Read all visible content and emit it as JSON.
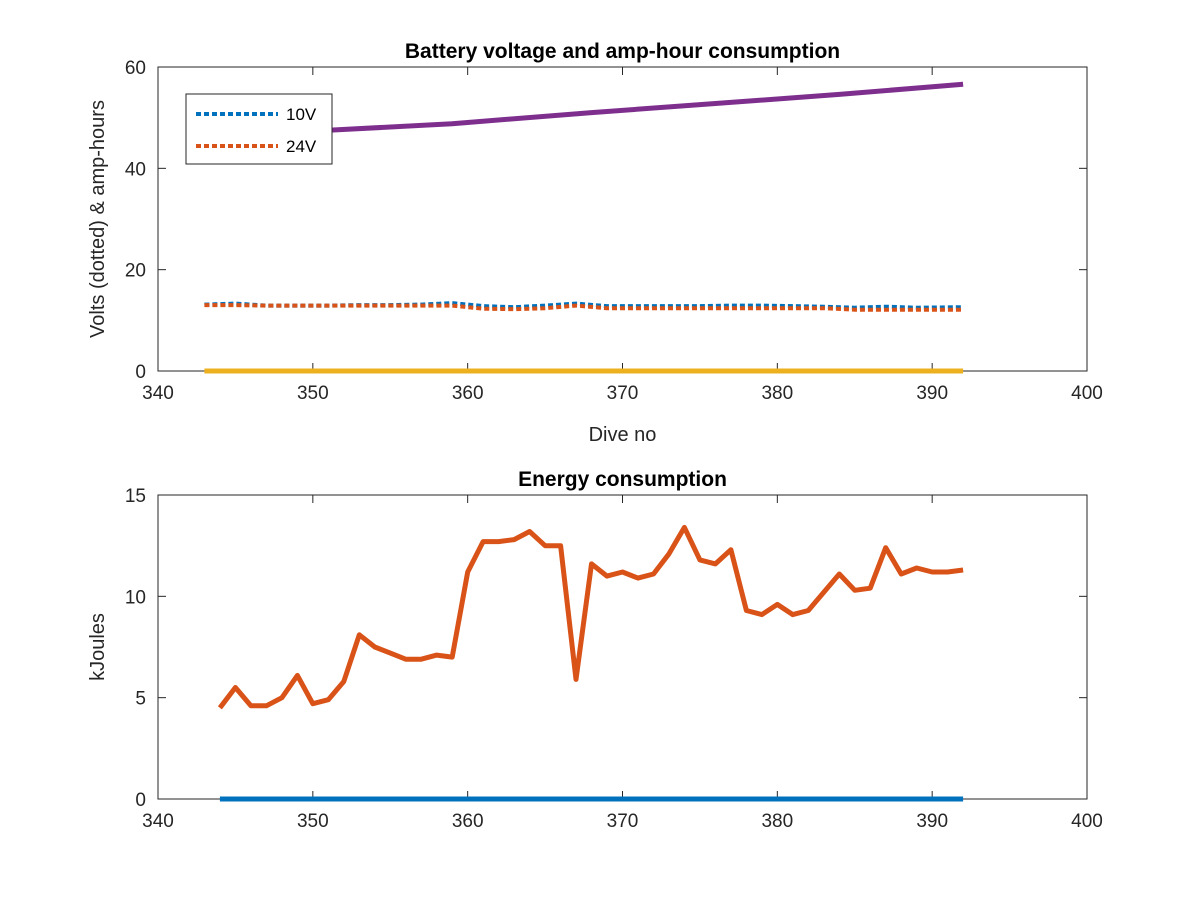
{
  "chart_data": [
    {
      "type": "line",
      "title": "Battery voltage and amp-hour consumption",
      "xlabel": "Dive no",
      "ylabel": "Volts (dotted) & amp-hours",
      "xlim": [
        340,
        400
      ],
      "ylim": [
        0,
        60
      ],
      "xticks": [
        340,
        350,
        360,
        370,
        380,
        390,
        400
      ],
      "yticks": [
        0,
        20,
        40,
        60
      ],
      "legend": {
        "placement": "top-left",
        "entries": [
          "10V",
          "24V"
        ]
      },
      "series": [
        {
          "name": "10V",
          "style": "dotted",
          "color": "#0072BD",
          "x": [
            343,
            345,
            347,
            349,
            351,
            353,
            355,
            357,
            359,
            361,
            363,
            365,
            367,
            369,
            371,
            373,
            375,
            377,
            379,
            381,
            383,
            385,
            387,
            389,
            392
          ],
          "y": [
            13.1,
            13.3,
            12.9,
            12.9,
            12.9,
            13.0,
            13.0,
            13.1,
            13.4,
            12.8,
            12.6,
            12.9,
            13.3,
            12.8,
            12.8,
            12.8,
            12.8,
            12.9,
            12.9,
            12.8,
            12.7,
            12.5,
            12.7,
            12.5,
            12.6
          ]
        },
        {
          "name": "24V",
          "style": "dotted",
          "color": "#D95319",
          "x": [
            343,
            345,
            347,
            349,
            351,
            353,
            355,
            357,
            359,
            361,
            363,
            365,
            367,
            369,
            371,
            373,
            375,
            377,
            379,
            381,
            383,
            385,
            387,
            389,
            392
          ],
          "y": [
            13.0,
            13.0,
            12.9,
            12.9,
            12.9,
            12.9,
            12.9,
            12.9,
            12.9,
            12.3,
            12.2,
            12.4,
            12.9,
            12.4,
            12.4,
            12.4,
            12.4,
            12.4,
            12.4,
            12.4,
            12.4,
            12.1,
            12.1,
            12.1,
            12.1
          ]
        },
        {
          "style": "solid",
          "color": "#7E2F8E",
          "x": [
            343,
            351,
            359,
            368,
            376,
            384,
            392
          ],
          "y": [
            47.0,
            47.5,
            48.8,
            51.0,
            52.8,
            54.6,
            56.6
          ]
        },
        {
          "style": "solid",
          "color": "#EDB120",
          "x": [
            343,
            392
          ],
          "y": [
            0,
            0
          ]
        }
      ]
    },
    {
      "type": "line",
      "title": "Energy consumption",
      "xlabel": "",
      "ylabel": "kJoules",
      "xlim": [
        340,
        400
      ],
      "ylim": [
        0,
        15
      ],
      "xticks": [
        340,
        350,
        360,
        370,
        380,
        390,
        400
      ],
      "yticks": [
        0,
        5,
        10,
        15
      ],
      "series": [
        {
          "style": "solid",
          "color": "#D95319",
          "x": [
            344,
            345,
            346,
            347,
            348,
            349,
            350,
            351,
            352,
            353,
            354,
            355,
            356,
            357,
            358,
            359,
            360,
            361,
            362,
            363,
            364,
            365,
            366,
            367,
            368,
            369,
            370,
            371,
            372,
            373,
            374,
            375,
            376,
            377,
            378,
            379,
            380,
            381,
            382,
            383,
            384,
            385,
            386,
            387,
            388,
            389,
            390,
            391,
            392
          ],
          "y": [
            4.5,
            5.5,
            4.6,
            4.6,
            5.0,
            6.1,
            4.7,
            4.9,
            5.8,
            8.1,
            7.5,
            7.2,
            6.9,
            6.9,
            7.1,
            7.0,
            11.2,
            12.7,
            12.7,
            12.8,
            13.2,
            12.5,
            12.5,
            5.9,
            11.6,
            11.0,
            11.2,
            10.9,
            11.1,
            12.1,
            13.4,
            11.8,
            11.6,
            12.3,
            9.3,
            9.1,
            9.6,
            9.1,
            9.3,
            10.2,
            11.1,
            10.3,
            10.4,
            12.4,
            11.1,
            11.4,
            11.2,
            11.2,
            11.3
          ]
        },
        {
          "style": "solid",
          "color": "#0072BD",
          "x": [
            344,
            392
          ],
          "y": [
            0,
            0
          ]
        }
      ]
    }
  ]
}
